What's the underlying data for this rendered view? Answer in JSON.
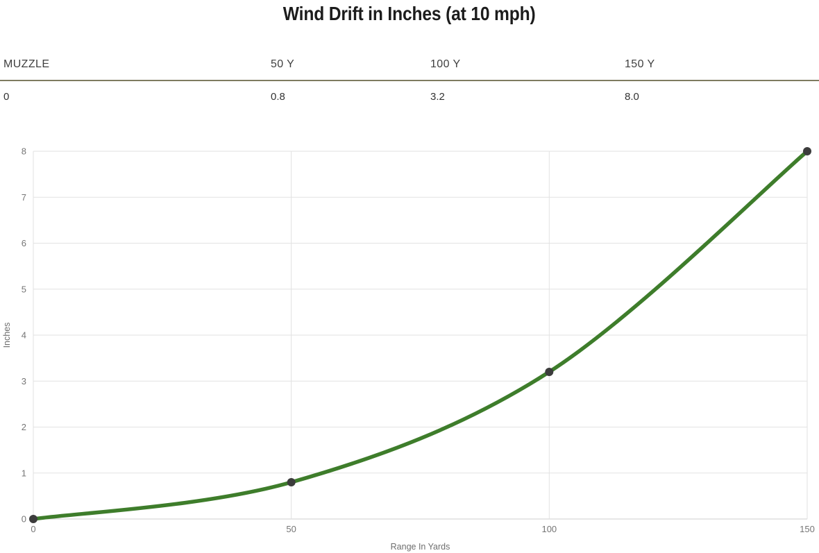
{
  "page": {
    "title": "Wind Drift in Inches (at 10 mph)"
  },
  "drift_table": {
    "columns": [
      {
        "header": "MUZZLE",
        "value": "0"
      },
      {
        "header": "50 Y",
        "value": "0.8"
      },
      {
        "header": "100 Y",
        "value": "3.2"
      },
      {
        "header": "150 Y",
        "value": "8.0"
      }
    ]
  },
  "chart_data": {
    "type": "line",
    "title": "Wind Drift in Inches (at 10 mph)",
    "x": [
      0,
      50,
      100,
      150
    ],
    "series": [
      {
        "name": "Wind Drift",
        "values": [
          0,
          0.8,
          3.2,
          8.0
        ]
      }
    ],
    "xlabel": "Range In Yards",
    "ylabel": "Inches",
    "xlim": [
      0,
      150
    ],
    "ylim": [
      0,
      8
    ],
    "xticks": [
      0,
      50,
      100,
      150
    ],
    "yticks": [
      0,
      1,
      2,
      3,
      4,
      5,
      6,
      7,
      8
    ],
    "grid": true,
    "legend": "none",
    "curve": "smooth",
    "line_color": "#3e7d2b",
    "marker_color": "#3c3c3c",
    "gridline_color": "#e2e2e2",
    "baseline_color": "#cfcfcf",
    "tick_label_color": "#757575"
  },
  "colors": {
    "separator": "#7e7b60",
    "title_text": "#1c1c1c",
    "header_text": "#3f3f3f",
    "value_text": "#333333",
    "background": "#ffffff"
  }
}
